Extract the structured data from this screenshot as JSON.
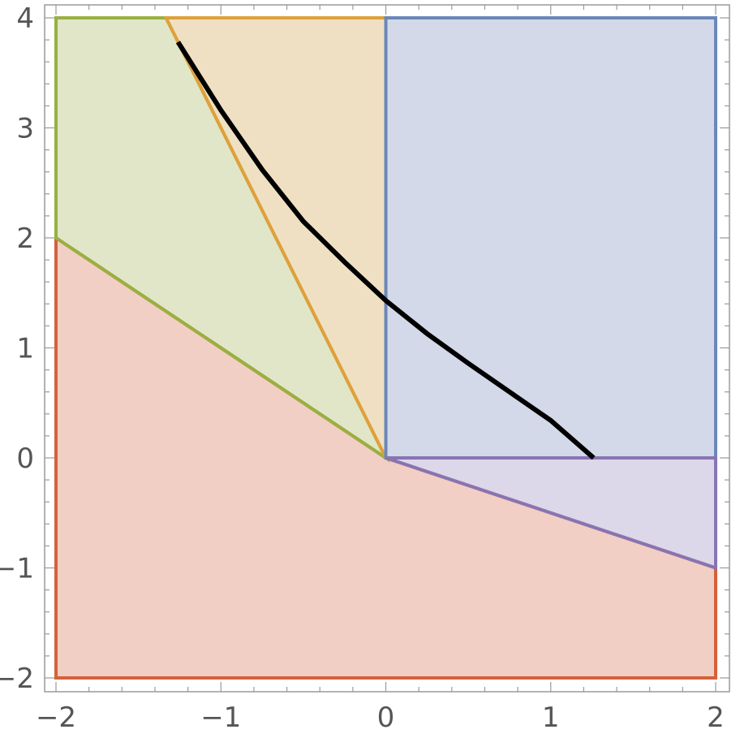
{
  "chart_data": {
    "type": "area",
    "title": "",
    "xlabel": "",
    "ylabel": "",
    "xlim": [
      -2,
      2
    ],
    "ylim": [
      -2,
      4
    ],
    "grid": false,
    "x_ticks": [
      {
        "value": -2,
        "label": "−2"
      },
      {
        "value": -1,
        "label": "−1"
      },
      {
        "value": 0,
        "label": "0"
      },
      {
        "value": 1,
        "label": "1"
      },
      {
        "value": 2,
        "label": "2"
      }
    ],
    "y_ticks": [
      {
        "value": -2,
        "label": "−2"
      },
      {
        "value": -1,
        "label": "−1"
      },
      {
        "value": 0,
        "label": "0"
      },
      {
        "value": 1,
        "label": "1"
      },
      {
        "value": 2,
        "label": "2"
      },
      {
        "value": 3,
        "label": "3"
      },
      {
        "value": 4,
        "label": "4"
      }
    ],
    "regions": [
      {
        "id": "red",
        "color": "#d5613b",
        "fill": "#f1cfc5",
        "points": [
          [
            -2,
            2
          ],
          [
            0,
            0
          ],
          [
            2,
            -1
          ],
          [
            2,
            -2
          ],
          [
            -2,
            -2
          ]
        ]
      },
      {
        "id": "green",
        "color": "#99b041",
        "fill": "#e1e6c8",
        "points": [
          [
            -2,
            4
          ],
          [
            -1.333,
            4
          ],
          [
            0,
            0
          ],
          [
            -2,
            2
          ]
        ]
      },
      {
        "id": "orange",
        "color": "#dea13b",
        "fill": "#f0e0c3",
        "points": [
          [
            -1.333,
            4
          ],
          [
            0,
            4
          ],
          [
            0,
            0
          ]
        ]
      },
      {
        "id": "blue",
        "color": "#6b87ba",
        "fill": "#d3d9e8",
        "points": [
          [
            0,
            4
          ],
          [
            2,
            4
          ],
          [
            2,
            0
          ],
          [
            0,
            0
          ]
        ]
      },
      {
        "id": "purple",
        "color": "#8874b3",
        "fill": "#dcd7e9",
        "points": [
          [
            0,
            0
          ],
          [
            2,
            0
          ],
          [
            2,
            -1
          ]
        ]
      }
    ],
    "curve": {
      "color": "#000000",
      "x": [
        -1.26,
        -1.0,
        -0.75,
        -0.5,
        -0.25,
        0.0,
        0.25,
        0.5,
        0.75,
        1.0,
        1.26
      ],
      "y": [
        3.78,
        3.16,
        2.62,
        2.15,
        1.78,
        1.43,
        1.13,
        0.86,
        0.6,
        0.34,
        0.0
      ]
    }
  }
}
